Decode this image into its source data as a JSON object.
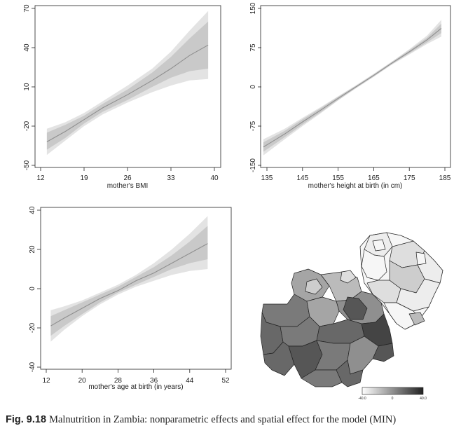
{
  "caption": {
    "label": "Fig. 9.18",
    "text": "Malnutrition in Zambia: nonparametric effects and spatial effect for the model (MIN)"
  },
  "chart_data": [
    {
      "type": "line",
      "xlabel": "mother's BMI",
      "xlim": [
        12,
        40
      ],
      "ylim": [
        -50,
        70
      ],
      "xticks": [
        12,
        19,
        26,
        33,
        40
      ],
      "yticks": [
        -50,
        -20,
        10,
        40,
        70
      ],
      "x": [
        13,
        16,
        19,
        22,
        26,
        30,
        33,
        36,
        39
      ],
      "series": [
        {
          "role": "estimate",
          "values": [
            -32,
            -24,
            -15,
            -6,
            4,
            15,
            24,
            34,
            42
          ]
        },
        {
          "role": "band-inner-upper",
          "values": [
            -25,
            -19,
            -12,
            -3,
            8,
            21,
            33,
            47,
            60
          ]
        },
        {
          "role": "band-inner-lower",
          "values": [
            -38,
            -29,
            -18,
            -9,
            0,
            10,
            17,
            22,
            24
          ]
        },
        {
          "role": "band-outer-upper",
          "values": [
            -22,
            -17,
            -10,
            -1,
            11,
            24,
            37,
            53,
            68
          ]
        },
        {
          "role": "band-outer-lower",
          "values": [
            -42,
            -31,
            -20,
            -11,
            -2,
            6,
            11,
            15,
            16
          ]
        }
      ]
    },
    {
      "type": "line",
      "xlabel": "mother's height at birth (in cm)",
      "xlim": [
        135,
        185
      ],
      "ylim": [
        -150,
        150
      ],
      "xticks": [
        135,
        145,
        155,
        165,
        175,
        185
      ],
      "yticks": [
        -150,
        -75,
        0,
        75,
        150
      ],
      "x": [
        134,
        140,
        145,
        150,
        155,
        160,
        165,
        170,
        175,
        180,
        184
      ],
      "series": [
        {
          "role": "estimate",
          "values": [
            -115,
            -90,
            -67,
            -45,
            -22,
            0,
            22,
            45,
            67,
            90,
            112
          ]
        },
        {
          "role": "band-inner-upper",
          "values": [
            -106,
            -84,
            -62,
            -41,
            -19,
            2,
            24,
            47,
            70,
            94,
            121
          ]
        },
        {
          "role": "band-inner-lower",
          "values": [
            -124,
            -96,
            -72,
            -49,
            -25,
            -2,
            20,
            43,
            64,
            85,
            103
          ]
        },
        {
          "role": "band-outer-upper",
          "values": [
            -100,
            -80,
            -59,
            -39,
            -18,
            3,
            25,
            48,
            72,
            98,
            128
          ]
        },
        {
          "role": "band-outer-lower",
          "values": [
            -131,
            -100,
            -75,
            -51,
            -26,
            -3,
            19,
            42,
            62,
            82,
            96
          ]
        }
      ]
    },
    {
      "type": "line",
      "xlabel": "mother's age at birth (in years)",
      "xlim": [
        12,
        52
      ],
      "ylim": [
        -40,
        40
      ],
      "xticks": [
        12,
        20,
        28,
        36,
        44,
        52
      ],
      "yticks": [
        -40,
        -20,
        0,
        20,
        40
      ],
      "x": [
        13,
        16,
        20,
        24,
        28,
        32,
        36,
        40,
        44,
        48
      ],
      "series": [
        {
          "role": "estimate",
          "values": [
            -19,
            -15,
            -10,
            -5,
            -1,
            4,
            8,
            13,
            18,
            23
          ]
        },
        {
          "role": "band-inner-upper",
          "values": [
            -14,
            -11,
            -7,
            -3,
            1,
            6,
            11,
            17,
            24,
            32
          ]
        },
        {
          "role": "band-inner-lower",
          "values": [
            -24,
            -19,
            -13,
            -7,
            -2,
            2,
            6,
            10,
            13,
            15
          ]
        },
        {
          "role": "band-outer-upper",
          "values": [
            -11,
            -9,
            -6,
            -2,
            2,
            7,
            13,
            20,
            28,
            37
          ]
        },
        {
          "role": "band-outer-lower",
          "values": [
            -27,
            -21,
            -14,
            -8,
            -3,
            1,
            4,
            7,
            9,
            10
          ]
        }
      ]
    }
  ],
  "spatial_map": {
    "legend": {
      "min_label": "-40.0",
      "mid_label": "0",
      "max_label": "40.0",
      "gradient_colors": [
        "#ffffff",
        "#222222"
      ]
    },
    "region_colors": [
      "#f6f6f6",
      "#ededed",
      "#dedede",
      "#cdcdcd",
      "#bbbbbb",
      "#a5a5a5",
      "#8f8f8f",
      "#7a7a7a",
      "#686868",
      "#565656",
      "#444444"
    ]
  },
  "colors": {
    "band_outer": "#e3e3e3",
    "band_inner": "#c9c9c9",
    "estimate_line": "#8f8f8f",
    "axis": "#222222"
  }
}
